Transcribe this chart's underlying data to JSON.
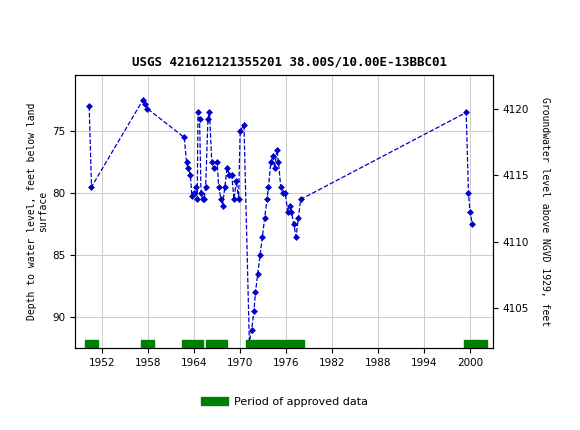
{
  "title": "USGS 421612121355201 38.00S/10.00E-13BBC01",
  "ylabel_left": "Depth to water level, feet below land\nsurface",
  "ylabel_right": "Groundwater level above NGVD 1929, feet",
  "xlim": [
    1948.5,
    2003
  ],
  "ylim_left": [
    92.5,
    70.5
  ],
  "ylim_right": [
    4102,
    4122.5
  ],
  "xticks": [
    1952,
    1958,
    1964,
    1970,
    1976,
    1982,
    1988,
    1994,
    2000
  ],
  "yticks_left": [
    75,
    80,
    85,
    90
  ],
  "yticks_right": [
    4120,
    4115,
    4110,
    4105
  ],
  "grid_color": "#cccccc",
  "data_color": "#0000cc",
  "header_bg": "#006633",
  "header_text": "#ffffff",
  "plot_bg": "#ffffff",
  "data_points": [
    [
      1950.3,
      73.0
    ],
    [
      1950.6,
      79.5
    ],
    [
      1957.3,
      72.5
    ],
    [
      1957.6,
      72.8
    ],
    [
      1957.9,
      73.2
    ],
    [
      1962.7,
      75.5
    ],
    [
      1963.0,
      77.5
    ],
    [
      1963.2,
      78.0
    ],
    [
      1963.5,
      78.5
    ],
    [
      1963.7,
      80.2
    ],
    [
      1964.0,
      80.0
    ],
    [
      1964.2,
      79.5
    ],
    [
      1964.4,
      80.5
    ],
    [
      1964.5,
      73.5
    ],
    [
      1964.7,
      74.0
    ],
    [
      1964.9,
      80.0
    ],
    [
      1965.1,
      80.5
    ],
    [
      1965.3,
      80.5
    ],
    [
      1965.5,
      79.5
    ],
    [
      1965.8,
      74.0
    ],
    [
      1966.0,
      73.5
    ],
    [
      1966.3,
      77.5
    ],
    [
      1966.6,
      78.0
    ],
    [
      1967.0,
      77.5
    ],
    [
      1967.2,
      79.5
    ],
    [
      1967.5,
      80.5
    ],
    [
      1967.7,
      81.0
    ],
    [
      1968.0,
      79.5
    ],
    [
      1968.3,
      78.0
    ],
    [
      1968.6,
      78.5
    ],
    [
      1968.9,
      78.5
    ],
    [
      1969.2,
      80.5
    ],
    [
      1969.5,
      79.0
    ],
    [
      1969.8,
      80.5
    ],
    [
      1970.0,
      75.0
    ],
    [
      1970.5,
      74.5
    ],
    [
      1971.2,
      92.0
    ],
    [
      1971.5,
      91.0
    ],
    [
      1971.8,
      89.5
    ],
    [
      1972.0,
      88.0
    ],
    [
      1972.3,
      86.5
    ],
    [
      1972.6,
      85.0
    ],
    [
      1972.9,
      83.5
    ],
    [
      1973.2,
      82.0
    ],
    [
      1973.5,
      80.5
    ],
    [
      1973.7,
      79.5
    ],
    [
      1974.0,
      77.5
    ],
    [
      1974.3,
      77.0
    ],
    [
      1974.5,
      78.0
    ],
    [
      1974.8,
      76.5
    ],
    [
      1975.0,
      77.5
    ],
    [
      1975.3,
      79.5
    ],
    [
      1975.6,
      80.0
    ],
    [
      1975.9,
      80.0
    ],
    [
      1976.2,
      81.5
    ],
    [
      1976.5,
      81.0
    ],
    [
      1976.7,
      81.5
    ],
    [
      1977.0,
      82.5
    ],
    [
      1977.3,
      83.5
    ],
    [
      1977.6,
      82.0
    ],
    [
      1977.9,
      80.5
    ],
    [
      1999.5,
      73.5
    ],
    [
      1999.8,
      80.0
    ],
    [
      2000.0,
      81.5
    ],
    [
      2000.3,
      82.5
    ]
  ],
  "green_bars": [
    [
      1949.8,
      1951.5
    ],
    [
      1957.0,
      1958.8
    ],
    [
      1962.4,
      1965.2
    ],
    [
      1965.5,
      1968.3
    ],
    [
      1970.8,
      1978.3
    ],
    [
      1999.2,
      2002.2
    ]
  ],
  "green_bar_y": 91.8,
  "green_bar_height": 0.7,
  "legend_label": "Period of approved data",
  "legend_green": "#008000"
}
